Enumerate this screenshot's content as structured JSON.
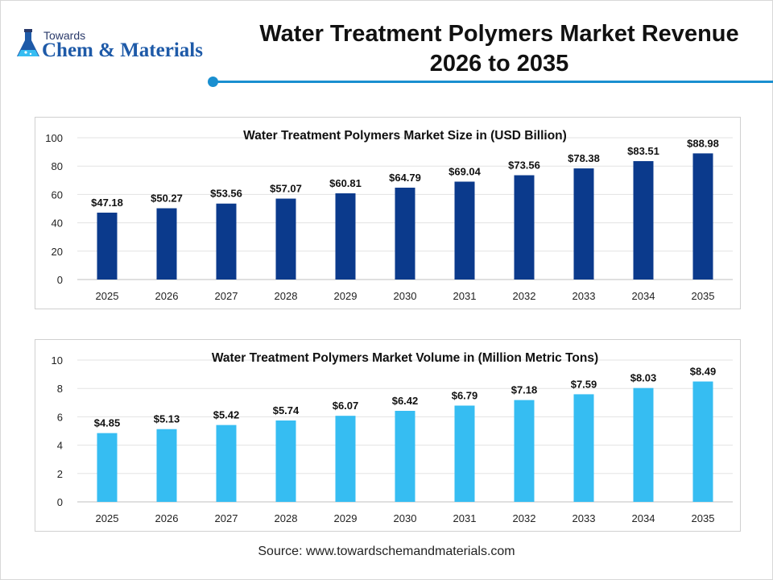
{
  "header": {
    "logo_line1": "Towards",
    "logo_line2": "Chem & Materials",
    "title_line1": "Water Treatment Polymers Market Revenue",
    "title_line2": "2026 to 2035"
  },
  "chart_data": [
    {
      "type": "bar",
      "title": "Water Treatment Polymers Market Size in (USD Billion)",
      "xlabel": "",
      "ylabel": "",
      "categories": [
        "2025",
        "2026",
        "2027",
        "2028",
        "2029",
        "2030",
        "2031",
        "2032",
        "2033",
        "2034",
        "2035"
      ],
      "values": [
        47.18,
        50.27,
        53.56,
        57.07,
        60.81,
        64.79,
        69.04,
        73.56,
        78.38,
        83.51,
        88.98
      ],
      "value_labels": [
        "$47.18",
        "$50.27",
        "$53.56",
        "$57.07",
        "$60.81",
        "$64.79",
        "$69.04",
        "$73.56",
        "$78.38",
        "$83.51",
        "$88.98"
      ],
      "ylim": [
        0,
        100
      ],
      "yticks": [
        0,
        20,
        40,
        60,
        80,
        100
      ],
      "grid": true,
      "legend": "none",
      "bar_color": "#0b3a8c"
    },
    {
      "type": "bar",
      "title": "Water Treatment Polymers Market Volume in (Million Metric Tons)",
      "xlabel": "",
      "ylabel": "",
      "categories": [
        "2025",
        "2026",
        "2027",
        "2028",
        "2029",
        "2030",
        "2031",
        "2032",
        "2033",
        "2034",
        "2035"
      ],
      "values": [
        4.85,
        5.13,
        5.42,
        5.74,
        6.07,
        6.42,
        6.79,
        7.18,
        7.59,
        8.03,
        8.49
      ],
      "value_labels": [
        "$4.85",
        "$5.13",
        "$5.42",
        "$5.74",
        "$6.07",
        "$6.42",
        "$6.79",
        "$7.18",
        "$7.59",
        "$8.03",
        "$8.49"
      ],
      "ylim": [
        0,
        10
      ],
      "yticks": [
        0,
        2,
        4,
        6,
        8,
        10
      ],
      "grid": true,
      "legend": "none",
      "bar_color": "#36bdf2"
    }
  ],
  "footer": {
    "source": "Source: www.towardschemandmaterials.com"
  }
}
